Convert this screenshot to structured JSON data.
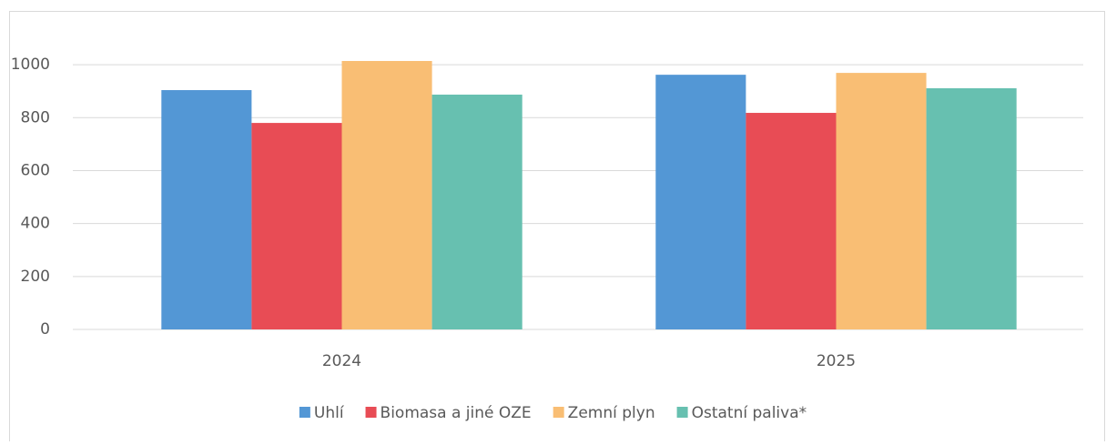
{
  "chart_data": {
    "type": "bar",
    "categories": [
      "2024",
      "2025"
    ],
    "series": [
      {
        "name": "Uhlí",
        "color": "#5397d5",
        "values": [
          904,
          962
        ]
      },
      {
        "name": "Biomasa a jiné OZE",
        "color": "#e84c55",
        "values": [
          780,
          818
        ]
      },
      {
        "name": "Zemní plyn",
        "color": "#f9be74",
        "values": [
          1014,
          969
        ]
      },
      {
        "name": "Ostatní paliva*",
        "color": "#67c0b0",
        "values": [
          887,
          911
        ]
      }
    ],
    "ylim": [
      0,
      1100
    ],
    "yticks": [
      0,
      200,
      400,
      600,
      800,
      1000
    ],
    "grid": true,
    "legend": "bottom"
  }
}
